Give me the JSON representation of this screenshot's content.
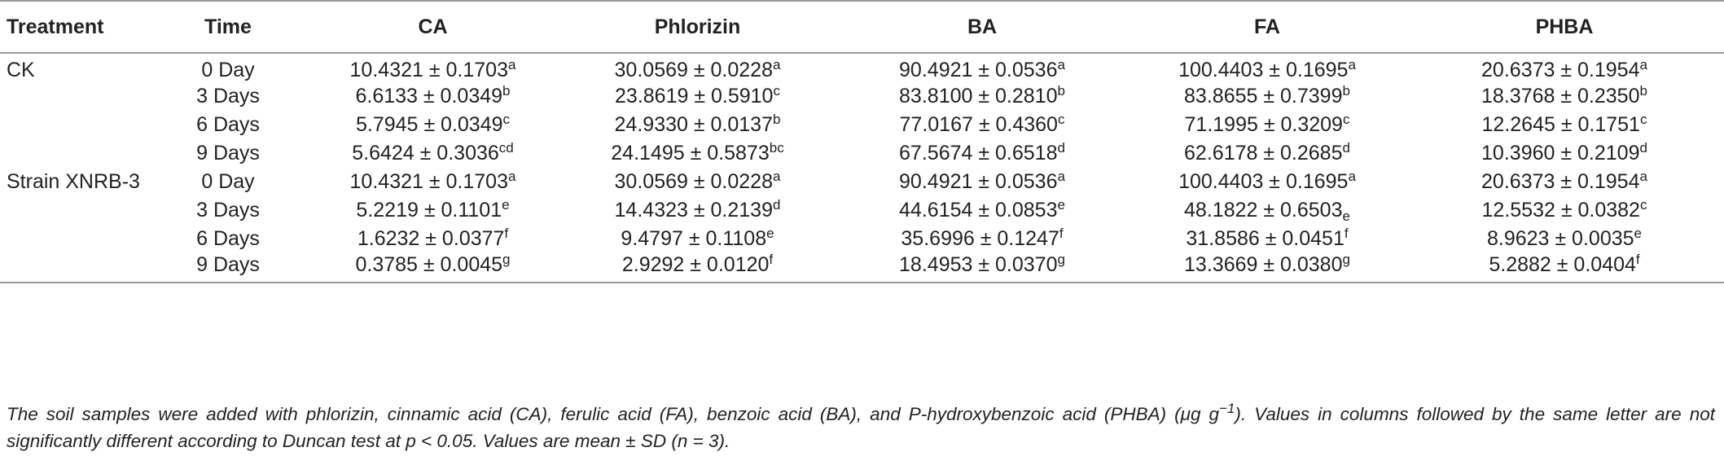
{
  "table": {
    "headers": [
      "Treatment",
      "Time",
      "CA",
      "Phlorizin",
      "BA",
      "FA",
      "PHBA"
    ],
    "rows": [
      {
        "treatment": "CK",
        "time": "0 Day",
        "cells": [
          {
            "v": "10.4321 ± 0.1703",
            "s": "a"
          },
          {
            "v": "30.0569 ± 0.0228",
            "s": "a"
          },
          {
            "v": "90.4921 ± 0.0536",
            "s": "a"
          },
          {
            "v": "100.4403 ± 0.1695",
            "s": "a"
          },
          {
            "v": "20.6373 ± 0.1954",
            "s": "a"
          }
        ]
      },
      {
        "treatment": "",
        "time": "3 Days",
        "cells": [
          {
            "v": "6.6133 ± 0.0349",
            "s": "b"
          },
          {
            "v": "23.8619 ± 0.5910",
            "s": "c"
          },
          {
            "v": "83.8100 ± 0.2810",
            "s": "b"
          },
          {
            "v": "83.8655 ± 0.7399",
            "s": "b"
          },
          {
            "v": "18.3768 ± 0.2350",
            "s": "b"
          }
        ]
      },
      {
        "treatment": "",
        "time": "6 Days",
        "cells": [
          {
            "v": "5.7945 ± 0.0349",
            "s": "c"
          },
          {
            "v": "24.9330 ± 0.0137",
            "s": "b"
          },
          {
            "v": "77.0167 ± 0.4360",
            "s": "c"
          },
          {
            "v": "71.1995 ± 0.3209",
            "s": "c"
          },
          {
            "v": "12.2645 ± 0.1751",
            "s": "c"
          }
        ]
      },
      {
        "treatment": "",
        "time": "9 Days",
        "cells": [
          {
            "v": "5.6424 ± 0.3036",
            "s": "cd"
          },
          {
            "v": "24.1495 ± 0.5873",
            "s": "bc"
          },
          {
            "v": "67.5674 ± 0.6518",
            "s": "d"
          },
          {
            "v": "62.6178 ± 0.2685",
            "s": "d"
          },
          {
            "v": "10.3960 ± 0.2109",
            "s": "d"
          }
        ]
      },
      {
        "treatment": "Strain XNRB-3",
        "time": "0 Day",
        "cells": [
          {
            "v": "10.4321 ± 0.1703",
            "s": "a"
          },
          {
            "v": "30.0569 ± 0.0228",
            "s": "a"
          },
          {
            "v": "90.4921 ± 0.0536",
            "s": "a"
          },
          {
            "v": "100.4403 ± 0.1695",
            "s": "a"
          },
          {
            "v": "20.6373 ± 0.1954",
            "s": "a"
          }
        ]
      },
      {
        "treatment": "",
        "time": "3 Days",
        "cells": [
          {
            "v": "5.2219 ± 0.1101",
            "s": "e"
          },
          {
            "v": "14.4323 ± 0.2139",
            "s": "d"
          },
          {
            "v": "44.6154 ± 0.0853",
            "s": "e"
          },
          {
            "v": "48.1822 ± 0.6503",
            "s": "e",
            "sub": true
          },
          {
            "v": "12.5532 ± 0.0382",
            "s": "c"
          }
        ]
      },
      {
        "treatment": "",
        "time": "6 Days",
        "cells": [
          {
            "v": "1.6232 ± 0.0377",
            "s": "f"
          },
          {
            "v": "9.4797 ± 0.1108",
            "s": "e"
          },
          {
            "v": "35.6996 ± 0.1247",
            "s": "f"
          },
          {
            "v": "31.8586 ± 0.0451",
            "s": "f"
          },
          {
            "v": "8.9623 ± 0.0035",
            "s": "e"
          }
        ]
      },
      {
        "treatment": "",
        "time": "9 Days",
        "cells": [
          {
            "v": "0.3785 ± 0.0045",
            "s": "g"
          },
          {
            "v": "2.9292 ± 0.0120",
            "s": "f"
          },
          {
            "v": "18.4953 ± 0.0370",
            "s": "g"
          },
          {
            "v": "13.3669 ± 0.0380",
            "s": "g"
          },
          {
            "v": "5.2882 ± 0.0404",
            "s": "f"
          }
        ]
      }
    ]
  },
  "footnote": {
    "part1": "The soil samples were added with phlorizin, cinnamic acid (CA), ferulic acid (FA), benzoic acid (BA), and P-hydroxybenzoic acid (PHBA) (μg g",
    "unit_exp": "−1",
    "part2": "). Values in columns followed by the same letter are not significantly different according to Duncan test at p < 0.05. Values are mean ± SD (n = 3)."
  }
}
